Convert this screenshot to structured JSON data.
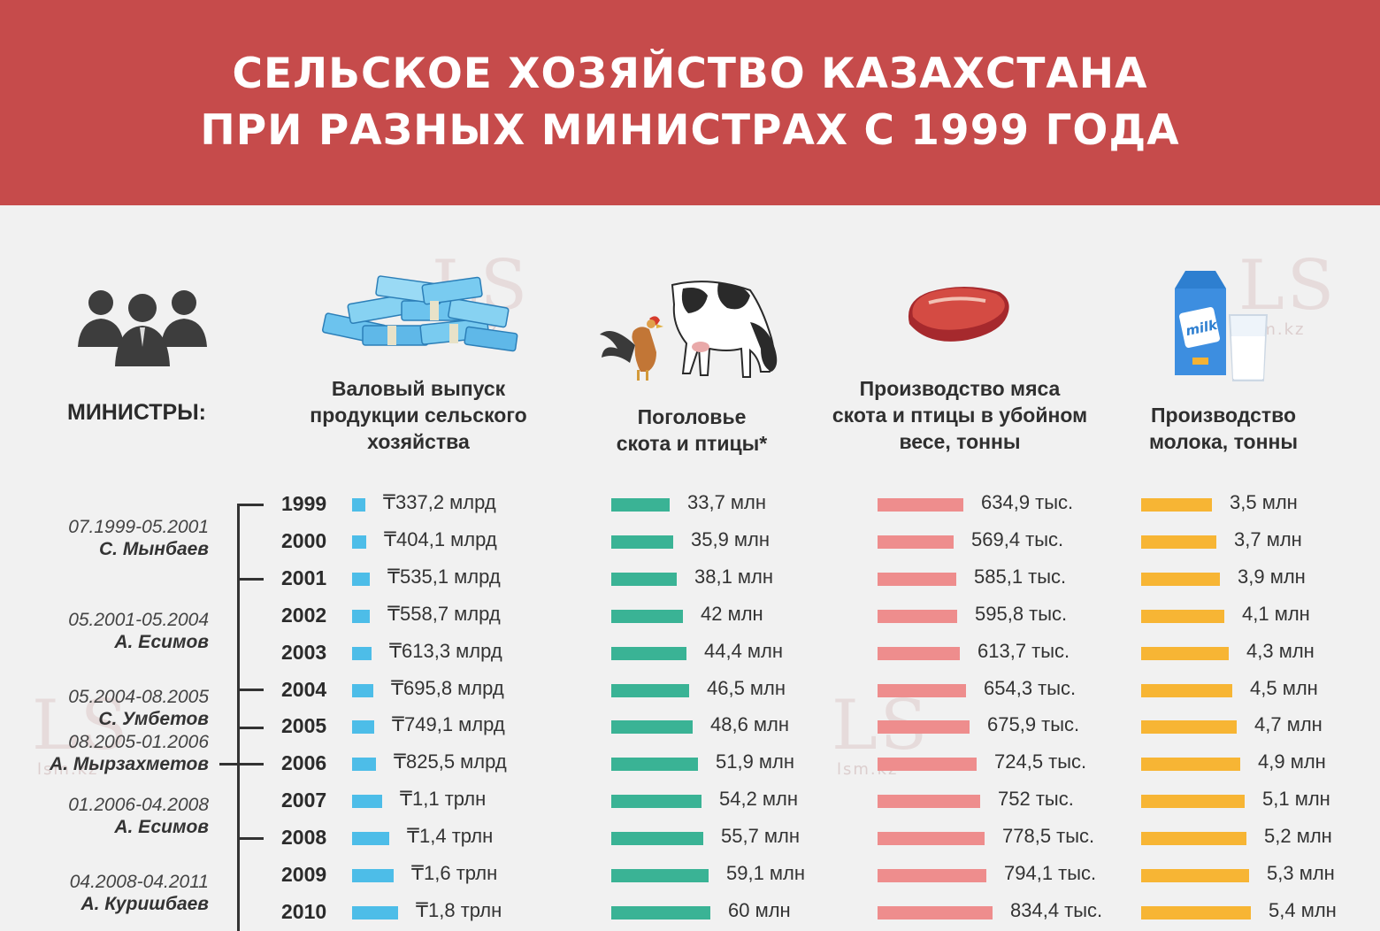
{
  "title_lines": [
    "СЕЛЬСКОЕ ХОЗЯЙСТВО КАЗАХСТАНА",
    "ПРИ РАЗНЫХ МИНИСТРАХ С 1999 ГОДА"
  ],
  "watermark": {
    "logo": "LS",
    "site": "lsm.kz"
  },
  "ministers_label": "МИНИСТРЫ:",
  "columns": {
    "output": [
      "Валовый выпуск",
      "продукции сельского",
      "хозяйства"
    ],
    "livestock": [
      "Поголовье",
      "скота и птицы*"
    ],
    "meat": [
      "Производство мяса",
      "скота и птицы в убойном",
      "весе, тонны"
    ],
    "milk": [
      "Производство",
      "молока, тонны"
    ]
  },
  "milk_carton_text": "milk",
  "ministers": [
    {
      "period": "07.1999-05.2001",
      "name": "С. Мынбаев"
    },
    {
      "period": "05.2001-05.2004",
      "name": "А. Есимов"
    },
    {
      "period": "05.2004-08.2005",
      "name": "С. Умбетов"
    },
    {
      "period": "08.2005-01.2006",
      "name": "А. Мырзахметов"
    },
    {
      "period": "01.2006-04.2008",
      "name": "А. Есимов"
    },
    {
      "period": "04.2008-04.2011",
      "name": "А. Куришбаев"
    }
  ],
  "colors": {
    "banner": "#c64b4b",
    "output": "#4dbde8",
    "livestock": "#3ab395",
    "meat": "#ee8d8d",
    "milk": "#f7b534"
  },
  "chart_data": {
    "type": "bar",
    "categories": [
      "1999",
      "2000",
      "2001",
      "2002",
      "2003",
      "2004",
      "2005",
      "2006",
      "2007",
      "2008",
      "2009",
      "2010"
    ],
    "series": [
      {
        "name": "Валовый выпуск продукции сельского хозяйства",
        "unit": "млрд ₸",
        "values": [
          337.2,
          404.1,
          535.1,
          558.7,
          613.3,
          695.8,
          749.1,
          825.5,
          1100,
          1400,
          1600,
          1800
        ],
        "labels": [
          "₸337,2 млрд",
          "₸404,1 млрд",
          "₸535,1 млрд",
          "₸558,7 млрд",
          "₸613,3 млрд",
          "₸695,8 млрд",
          "₸749,1 млрд",
          "₸825,5 млрд",
          "₸1,1 трлн",
          "₸1,4 трлн",
          "₸1,6 трлн",
          "₸1,8 трлн"
        ]
      },
      {
        "name": "Поголовье скота и птицы*",
        "unit": "млн",
        "values": [
          33.7,
          35.9,
          38.1,
          42,
          44.4,
          46.5,
          48.6,
          51.9,
          54.2,
          55.7,
          59.1,
          60
        ],
        "labels": [
          "33,7 млн",
          "35,9 млн",
          "38,1 млн",
          "42 млн",
          "44,4 млн",
          "46,5 млн",
          "48,6 млн",
          "51,9 млн",
          "54,2 млн",
          "55,7 млн",
          "59,1 млн",
          "60 млн"
        ]
      },
      {
        "name": "Производство мяса скота и птицы в убойном весе, тонны",
        "unit": "тыс. тонн",
        "values": [
          634.9,
          569.4,
          585.1,
          595.8,
          613.7,
          654.3,
          675.9,
          724.5,
          752,
          778.5,
          794.1,
          834.4
        ],
        "labels": [
          "634,9 тыс.",
          "569,4 тыс.",
          "585,1 тыс.",
          "595,8 тыс.",
          "613,7 тыс.",
          "654,3 тыс.",
          "675,9 тыс.",
          "724,5 тыс.",
          "752 тыс.",
          "778,5 тыс.",
          "794,1 тыс.",
          "834,4 тыс."
        ]
      },
      {
        "name": "Производство молока, тонны",
        "unit": "млн тонн",
        "values": [
          3.5,
          3.7,
          3.9,
          4.1,
          4.3,
          4.5,
          4.7,
          4.9,
          5.1,
          5.2,
          5.3,
          5.4
        ],
        "labels": [
          "3,5 млн",
          "3,7 млн",
          "3,9 млн",
          "4,1 млн",
          "4,3 млн",
          "4,5 млн",
          "4,7 млн",
          "4,9 млн",
          "5,1 млн",
          "5,2 млн",
          "5,3 млн",
          "5,4 млн"
        ]
      }
    ]
  }
}
